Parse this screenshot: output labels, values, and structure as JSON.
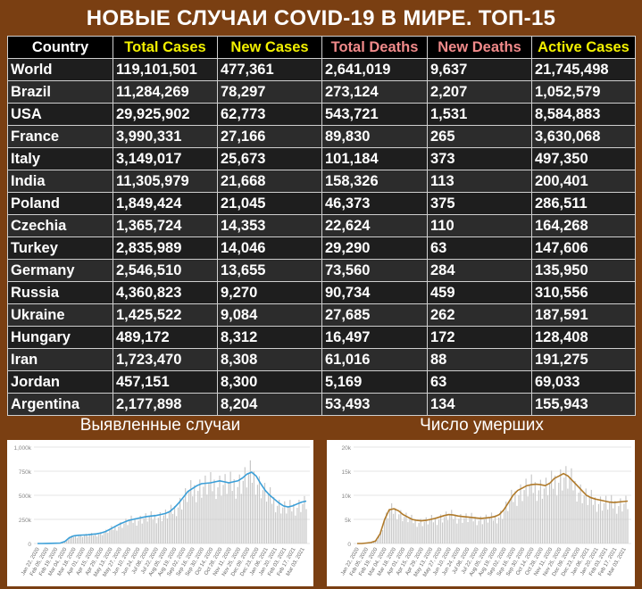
{
  "title": "НОВЫЕ СЛУЧАИ COVID-19 В МИРЕ. ТОП-15",
  "table": {
    "headers": [
      "Country",
      "Total Cases",
      "New Cases",
      "Total Deaths",
      "New Deaths",
      "Active Cases"
    ],
    "rows": [
      [
        "World",
        "119,101,501",
        "477,361",
        "2,641,019",
        "9,637",
        "21,745,498"
      ],
      [
        "Brazil",
        "11,284,269",
        "78,297",
        "273,124",
        "2,207",
        "1,052,579"
      ],
      [
        "USA",
        "29,925,902",
        "62,773",
        "543,721",
        "1,531",
        "8,584,883"
      ],
      [
        "France",
        "3,990,331",
        "27,166",
        "89,830",
        "265",
        "3,630,068"
      ],
      [
        "Italy",
        "3,149,017",
        "25,673",
        "101,184",
        "373",
        "497,350"
      ],
      [
        "India",
        "11,305,979",
        "21,668",
        "158,326",
        "113",
        "200,401"
      ],
      [
        "Poland",
        "1,849,424",
        "21,045",
        "46,373",
        "375",
        "286,511"
      ],
      [
        "Czechia",
        "1,365,724",
        "14,353",
        "22,624",
        "110",
        "164,268"
      ],
      [
        "Turkey",
        "2,835,989",
        "14,046",
        "29,290",
        "63",
        "147,606"
      ],
      [
        "Germany",
        "2,546,510",
        "13,655",
        "73,560",
        "284",
        "135,950"
      ],
      [
        "Russia",
        "4,360,823",
        "9,270",
        "90,734",
        "459",
        "310,556"
      ],
      [
        "Ukraine",
        "1,425,522",
        "9,084",
        "27,685",
        "262",
        "187,591"
      ],
      [
        "Hungary",
        "489,172",
        "8,312",
        "16,497",
        "172",
        "128,408"
      ],
      [
        "Iran",
        "1,723,470",
        "8,308",
        "61,016",
        "88",
        "191,275"
      ],
      [
        "Jordan",
        "457,151",
        "8,300",
        "5,169",
        "63",
        "69,033"
      ],
      [
        "Argentina",
        "2,177,898",
        "8,204",
        "53,493",
        "134",
        "155,943"
      ]
    ]
  },
  "chart_data": [
    {
      "type": "bar",
      "title": "Выявленные случаи",
      "line_color": "#3b9fd8",
      "bar_color": "#c8c8c8",
      "yticks": [
        "0",
        "250k",
        "500k",
        "750k",
        "1,000k"
      ],
      "ylim": [
        0,
        1000000
      ],
      "xticks": [
        "Jan 22, 2020",
        "Feb 05, 2020",
        "Feb 19, 2020",
        "Mar 04, 2020",
        "Mar 18, 2020",
        "Apr 01, 2020",
        "Apr 15, 2020",
        "Apr 29, 2020",
        "May 13, 2020",
        "May 27, 2020",
        "Jun 10, 2020",
        "Jun 24, 2020",
        "Jul 08, 2020",
        "Jul 22, 2020",
        "Aug 05, 2020",
        "Aug 19, 2020",
        "Sep 02, 2020",
        "Sep 16, 2020",
        "Sep 30, 2020",
        "Oct 14, 2020",
        "Oct 28, 2020",
        "Nov 11, 2020",
        "Nov 25, 2020",
        "Dec 09, 2020",
        "Dec 23, 2020",
        "Jan 06, 2021",
        "Jan 20, 2021",
        "Feb 03, 2021",
        "Feb 17, 2021",
        "Mar 03, 2021"
      ],
      "trend": [
        0,
        0,
        1000,
        2000,
        3000,
        5000,
        20000,
        60000,
        80000,
        85000,
        88000,
        90000,
        95000,
        100000,
        110000,
        125000,
        150000,
        175000,
        200000,
        220000,
        240000,
        250000,
        260000,
        270000,
        280000,
        285000,
        290000,
        300000,
        310000,
        330000,
        370000,
        420000,
        480000,
        540000,
        570000,
        600000,
        620000,
        625000,
        630000,
        640000,
        650000,
        640000,
        630000,
        640000,
        650000,
        680000,
        720000,
        740000,
        700000,
        620000,
        550000,
        500000,
        460000,
        420000,
        390000,
        380000,
        390000,
        410000,
        430000,
        440000
      ]
    },
    {
      "type": "bar",
      "title": "Число умерших",
      "line_color": "#b07a2a",
      "bar_color": "#c8c8c8",
      "yticks": [
        "0",
        "5k",
        "10k",
        "15k",
        "20k"
      ],
      "ylim": [
        0,
        20000
      ],
      "xticks": [
        "Jan 22, 2020",
        "Feb 05, 2020",
        "Feb 19, 2020",
        "Mar 04, 2020",
        "Mar 18, 2020",
        "Apr 01, 2020",
        "Apr 15, 2020",
        "Apr 29, 2020",
        "May 13, 2020",
        "May 27, 2020",
        "Jun 10, 2020",
        "Jun 24, 2020",
        "Jul 08, 2020",
        "Jul 22, 2020",
        "Aug 05, 2020",
        "Aug 19, 2020",
        "Sep 02, 2020",
        "Sep 16, 2020",
        "Sep 30, 2020",
        "Oct 14, 2020",
        "Oct 28, 2020",
        "Nov 11, 2020",
        "Nov 25, 2020",
        "Dec 09, 2020",
        "Dec 23, 2020",
        "Jan 06, 2021",
        "Jan 20, 2021",
        "Feb 03, 2021",
        "Feb 17, 2021",
        "Mar 03, 2021"
      ],
      "trend": [
        0,
        0,
        100,
        200,
        500,
        2000,
        5000,
        7000,
        7200,
        6800,
        6000,
        5500,
        5000,
        4800,
        4700,
        4800,
        5000,
        5200,
        5500,
        5800,
        6000,
        5900,
        5700,
        5600,
        5500,
        5400,
        5300,
        5200,
        5300,
        5400,
        5600,
        6000,
        7000,
        8500,
        10000,
        11000,
        11500,
        12000,
        12200,
        12300,
        12200,
        12000,
        12500,
        13500,
        14000,
        14500,
        14000,
        13000,
        12000,
        11000,
        10000,
        9500,
        9200,
        9000,
        8800,
        8600,
        8500,
        8600,
        8700,
        8800
      ]
    }
  ]
}
